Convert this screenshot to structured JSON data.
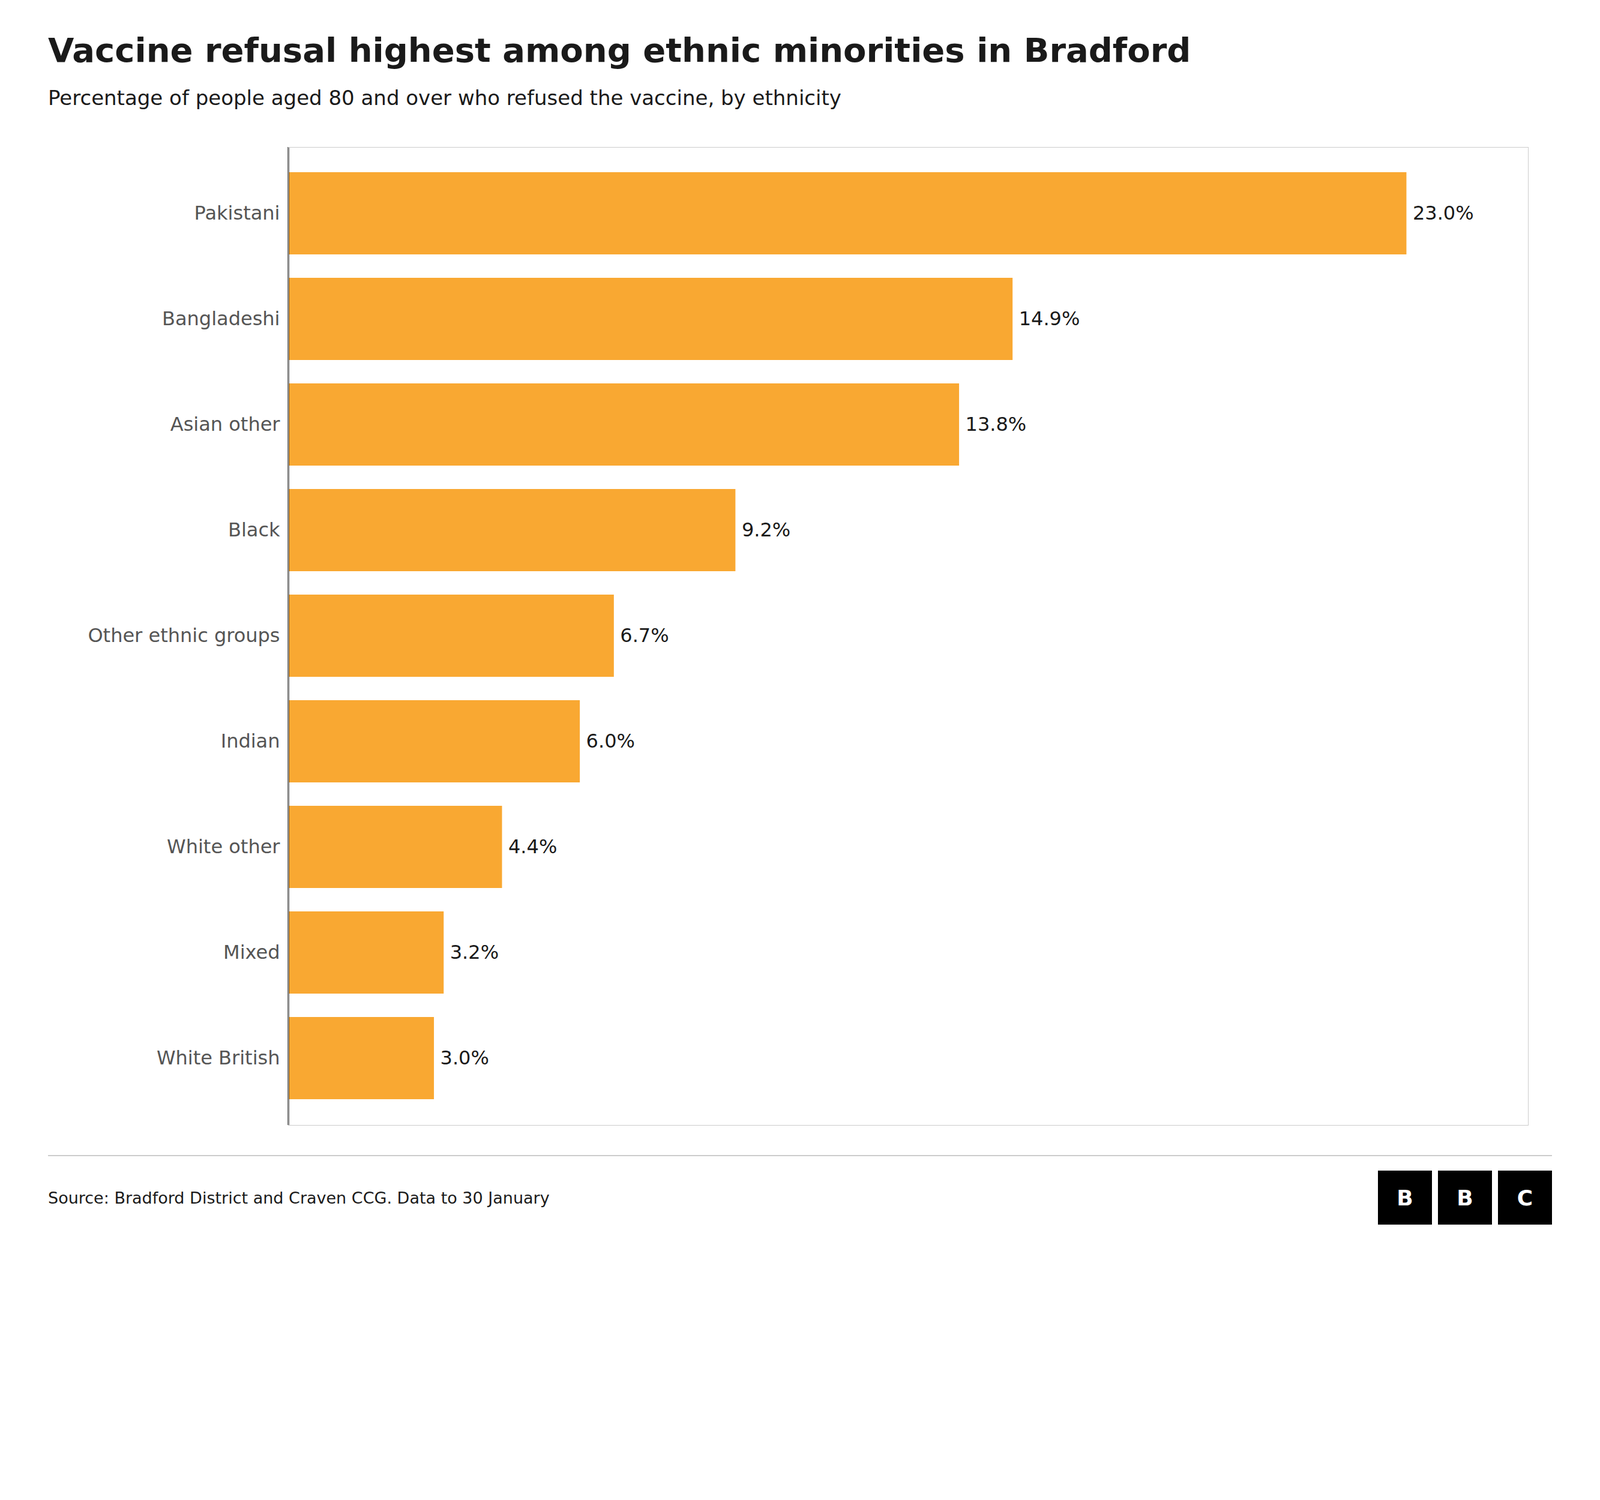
{
  "chart_data": {
    "type": "bar",
    "orientation": "horizontal",
    "title": "Vaccine refusal highest among ethnic minorities in Bradford",
    "subtitle": "Percentage of people aged 80 and over who refused the vaccine, by ethnicity",
    "categories": [
      "Pakistani",
      "Bangladeshi",
      "Asian other",
      "Black",
      "Other ethnic groups",
      "Indian",
      "White other",
      "Mixed",
      "White British"
    ],
    "values": [
      23.0,
      14.9,
      13.8,
      9.2,
      6.7,
      6.0,
      4.4,
      3.2,
      3.0
    ],
    "value_labels": [
      "23.0%",
      "14.9%",
      "13.8%",
      "9.2%",
      "6.7%",
      "6.0%",
      "4.4%",
      "3.2%",
      "3.0%"
    ],
    "data_labels": true,
    "color": "#F9A832",
    "xlim": [
      0,
      25.5
    ],
    "tick_labels": "y",
    "grid": false,
    "source": "Source: Bradford District and Craven CCG. Data to 30 January",
    "annotations": [
      "BBC"
    ]
  }
}
